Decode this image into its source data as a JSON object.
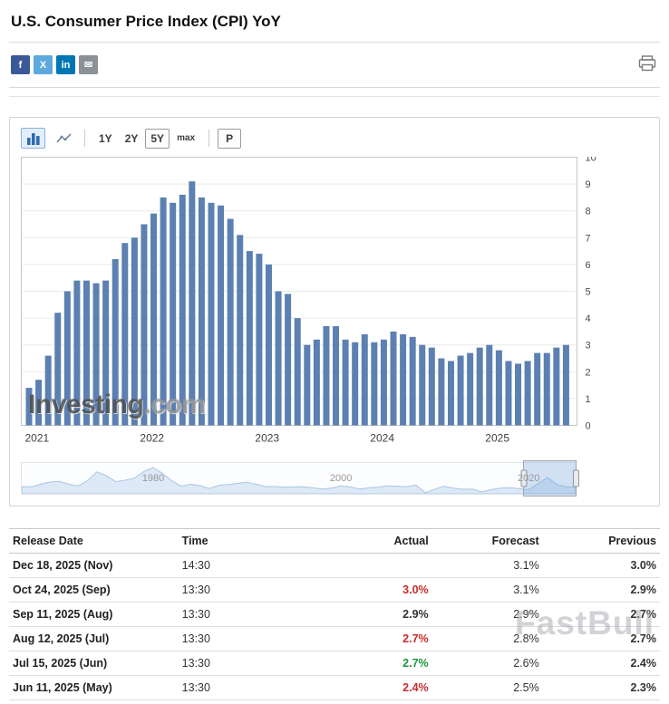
{
  "page": {
    "title": "U.S. Consumer Price Index (CPI) YoY"
  },
  "share": {
    "icons": [
      {
        "name": "facebook",
        "glyph": "f",
        "color": "#3b5998"
      },
      {
        "name": "x-twitter",
        "glyph": "X",
        "color": "#5da9dd"
      },
      {
        "name": "linkedin",
        "glyph": "in",
        "color": "#0077b5"
      },
      {
        "name": "email",
        "glyph": "✉",
        "color": "#8b9196"
      }
    ]
  },
  "toolbar": {
    "chart_types": [
      {
        "name": "bar",
        "selected": true
      },
      {
        "name": "line",
        "selected": false
      }
    ],
    "ranges": [
      {
        "label": "1Y",
        "selected": false
      },
      {
        "label": "2Y",
        "selected": false
      },
      {
        "label": "5Y",
        "selected": true
      },
      {
        "label": "max",
        "selected": false
      }
    ],
    "p_label": "P"
  },
  "chart_data": {
    "type": "bar",
    "title": "U.S. Consumer Price Index (CPI) YoY",
    "bar_color": "#5c80b1",
    "ylim": [
      0,
      10
    ],
    "y_ticks": [
      0,
      1,
      2,
      3,
      4,
      5,
      6,
      7,
      8,
      9,
      10
    ],
    "x_tick_labels": [
      "2021",
      "2022",
      "2023",
      "2024",
      "2025"
    ],
    "categories": [
      "2021-01",
      "2021-02",
      "2021-03",
      "2021-04",
      "2021-05",
      "2021-06",
      "2021-07",
      "2021-08",
      "2021-09",
      "2021-10",
      "2021-11",
      "2021-12",
      "2022-01",
      "2022-02",
      "2022-03",
      "2022-04",
      "2022-05",
      "2022-06",
      "2022-07",
      "2022-08",
      "2022-09",
      "2022-10",
      "2022-11",
      "2022-12",
      "2023-01",
      "2023-02",
      "2023-03",
      "2023-04",
      "2023-05",
      "2023-06",
      "2023-07",
      "2023-08",
      "2023-09",
      "2023-10",
      "2023-11",
      "2023-12",
      "2024-01",
      "2024-02",
      "2024-03",
      "2024-04",
      "2024-05",
      "2024-06",
      "2024-07",
      "2024-08",
      "2024-09",
      "2024-10",
      "2024-11",
      "2024-12",
      "2025-01",
      "2025-02",
      "2025-03",
      "2025-04",
      "2025-05",
      "2025-06",
      "2025-07",
      "2025-08",
      "2025-09"
    ],
    "values": [
      1.4,
      1.7,
      2.6,
      4.2,
      5.0,
      5.4,
      5.4,
      5.3,
      5.4,
      6.2,
      6.8,
      7.0,
      7.5,
      7.9,
      8.5,
      8.3,
      8.6,
      9.1,
      8.5,
      8.3,
      8.2,
      7.7,
      7.1,
      6.5,
      6.4,
      6.0,
      5.0,
      4.9,
      4.0,
      3.0,
      3.2,
      3.7,
      3.7,
      3.2,
      3.1,
      3.4,
      3.1,
      3.2,
      3.5,
      3.4,
      3.3,
      3.0,
      2.9,
      2.5,
      2.4,
      2.6,
      2.7,
      2.9,
      3.0,
      2.8,
      2.4,
      2.3,
      2.4,
      2.7,
      2.7,
      2.9,
      3.0
    ]
  },
  "navigator": {
    "start_year": 1966,
    "end_year": 2025,
    "tick_years": [
      1980,
      2000,
      2020
    ],
    "values": [
      3.0,
      2.8,
      4.3,
      5.5,
      5.8,
      4.3,
      3.3,
      6.2,
      11.1,
      9.1,
      5.7,
      6.5,
      7.6,
      11.3,
      13.5,
      10.3,
      6.1,
      3.2,
      4.3,
      3.5,
      1.9,
      3.7,
      4.1,
      4.8,
      5.4,
      4.2,
      3.0,
      3.0,
      2.6,
      2.8,
      2.9,
      2.3,
      1.6,
      2.2,
      3.4,
      2.8,
      1.6,
      2.3,
      2.7,
      3.4,
      3.2,
      2.9,
      3.8,
      -0.4,
      1.6,
      3.2,
      2.1,
      1.5,
      1.6,
      0.1,
      1.3,
      2.1,
      2.4,
      1.8,
      1.2,
      4.7,
      8.0,
      4.1,
      2.9,
      2.7
    ]
  },
  "watermarks": {
    "chart_bold": "Investing",
    "chart_light": ".com",
    "table": "FastBull"
  },
  "colors": {
    "negative": "#cc2b2b",
    "positive": "#1d9640"
  },
  "table": {
    "headers": [
      "Release Date",
      "Time",
      "Actual",
      "Forecast",
      "Previous"
    ],
    "rows": [
      {
        "date": "Dec 18, 2025 (Nov)",
        "time": "14:30",
        "actual": "",
        "actual_state": "",
        "forecast": "3.1%",
        "previous": "3.0%"
      },
      {
        "date": "Oct 24, 2025 (Sep)",
        "time": "13:30",
        "actual": "3.0%",
        "actual_state": "negative",
        "forecast": "3.1%",
        "previous": "2.9%"
      },
      {
        "date": "Sep 11, 2025 (Aug)",
        "time": "13:30",
        "actual": "2.9%",
        "actual_state": "",
        "forecast": "2.9%",
        "previous": "2.7%"
      },
      {
        "date": "Aug 12, 2025 (Jul)",
        "time": "13:30",
        "actual": "2.7%",
        "actual_state": "negative",
        "forecast": "2.8%",
        "previous": "2.7%"
      },
      {
        "date": "Jul 15, 2025 (Jun)",
        "time": "13:30",
        "actual": "2.7%",
        "actual_state": "positive",
        "forecast": "2.6%",
        "previous": "2.4%"
      },
      {
        "date": "Jun 11, 2025 (May)",
        "time": "13:30",
        "actual": "2.4%",
        "actual_state": "negative",
        "forecast": "2.5%",
        "previous": "2.3%"
      }
    ]
  }
}
